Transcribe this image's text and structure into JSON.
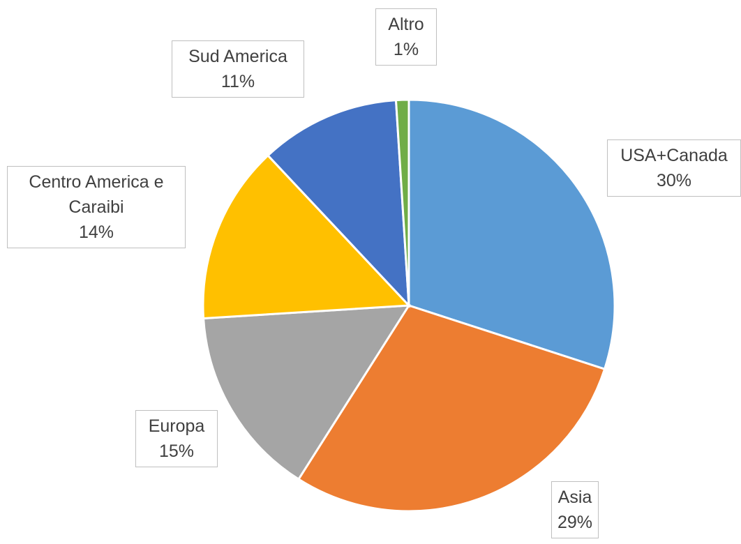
{
  "chart_data": {
    "type": "pie",
    "categories": [
      "USA+Canada",
      "Asia",
      "Europa",
      "Centro America e Caraibi",
      "Sud America",
      "Altro"
    ],
    "values": [
      30,
      29,
      15,
      14,
      11,
      1
    ],
    "value_labels": [
      "30%",
      "29%",
      "15%",
      "14%",
      "11%",
      "1%"
    ],
    "colors": [
      "#5b9bd5",
      "#ed7d31",
      "#a5a5a5",
      "#ffc000",
      "#4472c4",
      "#70ad47"
    ]
  }
}
